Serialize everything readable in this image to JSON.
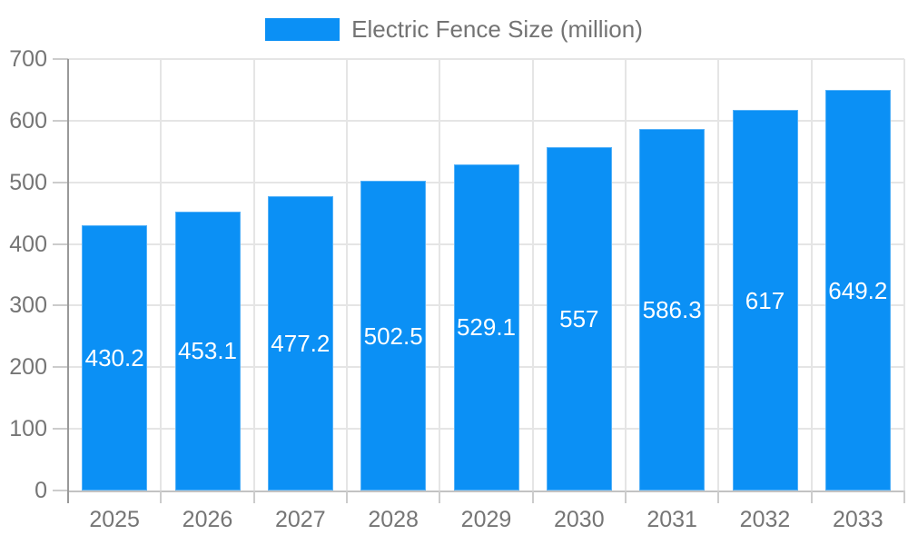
{
  "legend": {
    "label": "Electric Fence Size (million)"
  },
  "colors": {
    "bar": "#0b90f5",
    "bar_edge": "rgba(255,255,255,0.30)",
    "grid_line": "#e5e5e5",
    "y_axis_line": "#999999",
    "x_axis_line": "#c2c2c2",
    "tick_line": "#cccccc",
    "axis_text": "#757575",
    "legend_text": "#737373",
    "value_label_text": "#ffffff",
    "background": "#ffffff"
  },
  "chart_data": {
    "type": "bar",
    "title": "Electric Fence Size (million)",
    "series_name": "Electric Fence Size (million)",
    "categories": [
      "2025",
      "2026",
      "2027",
      "2028",
      "2029",
      "2030",
      "2031",
      "2032",
      "2033"
    ],
    "values": [
      430.2,
      453.1,
      477.2,
      502.5,
      529.1,
      557,
      586.3,
      617,
      649.2
    ],
    "xlabel": "",
    "ylabel": "",
    "ylim": [
      0,
      700
    ],
    "yticks": [
      0,
      100,
      200,
      300,
      400,
      500,
      600,
      700
    ],
    "grid": true,
    "vertical_gridlines": true,
    "legend_position": "top-center",
    "value_label_position": "inside-center"
  }
}
